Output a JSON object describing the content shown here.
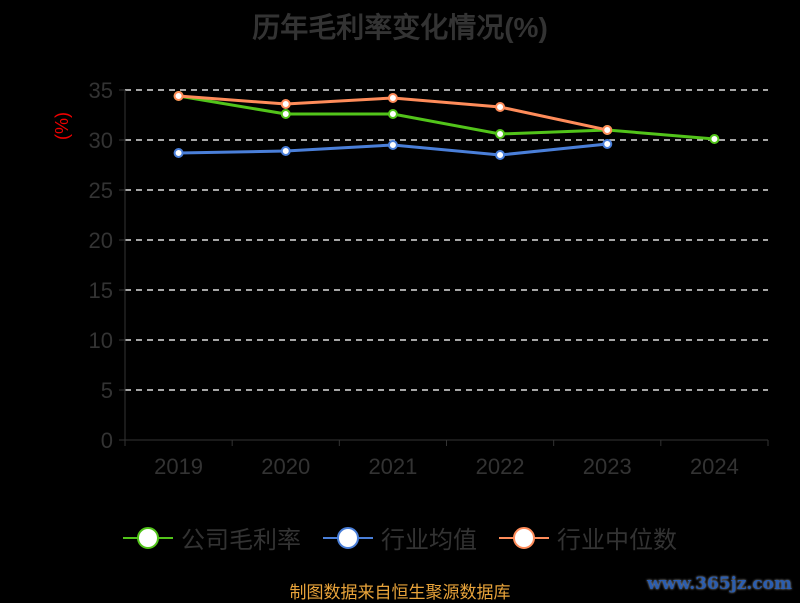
{
  "chart_data": {
    "type": "line",
    "title": "历年毛利率变化情况(%)",
    "ylabel": "(%)",
    "xlabel": "",
    "categories": [
      "2019",
      "2020",
      "2021",
      "2022",
      "2023",
      "2024"
    ],
    "ylim": [
      0,
      35
    ],
    "yticks": [
      0,
      5,
      10,
      15,
      20,
      25,
      30,
      35
    ],
    "grid": true,
    "legend_position": "bottom",
    "series": [
      {
        "name": "公司毛利率",
        "color": "#52c41a",
        "values": [
          34.4,
          32.6,
          32.6,
          30.6,
          31.0,
          30.1
        ]
      },
      {
        "name": "行业均值",
        "color": "#4a7fd9",
        "values": [
          28.7,
          28.9,
          29.5,
          28.5,
          29.6,
          null
        ]
      },
      {
        "name": "行业中位数",
        "color": "#ff8c5a",
        "values": [
          34.4,
          33.6,
          34.2,
          33.3,
          31.0,
          null
        ]
      }
    ]
  },
  "footer": {
    "source": "制图数据来自恒生聚源数据库",
    "watermark": "www.365jz.com"
  }
}
